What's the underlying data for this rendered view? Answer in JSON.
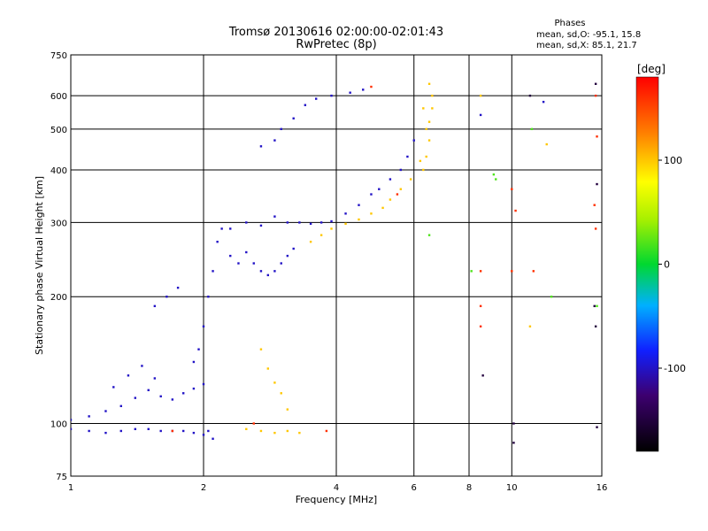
{
  "chart_data": {
    "type": "scatter",
    "title": "Tromsø 20130616 02:00:00-02:01:43",
    "subtitle": "RwPretec (8p)",
    "xlabel": "Frequency [MHz]",
    "ylabel": "Stationary phase Virtual Height [km]",
    "x_scale": "log",
    "y_scale": "log",
    "xlim": [
      1,
      16
    ],
    "ylim": [
      75,
      750
    ],
    "x_ticks": [
      1,
      2,
      4,
      6,
      8,
      10,
      16
    ],
    "y_ticks": [
      75,
      100,
      200,
      300,
      400,
      500,
      600,
      750
    ],
    "grid": true,
    "phase_box": {
      "title": "Phases",
      "line1": "mean, sd,O: -95.1, 15.8",
      "line2": "mean, sd,X:  85.1, 21.7"
    },
    "colorbar": {
      "label": "[deg]",
      "ticks": [
        100,
        0,
        -100
      ],
      "range": [
        -180,
        180
      ]
    },
    "series": [
      {
        "color_phase": -100,
        "points": [
          [
            1.0,
            97
          ],
          [
            1.1,
            96
          ],
          [
            1.2,
            95
          ],
          [
            1.3,
            96
          ],
          [
            1.4,
            97
          ],
          [
            1.5,
            97
          ],
          [
            1.6,
            96
          ],
          [
            1.7,
            96
          ],
          [
            1.8,
            96
          ],
          [
            1.9,
            95
          ],
          [
            2.0,
            94
          ],
          [
            1.0,
            102
          ],
          [
            1.1,
            104
          ],
          [
            1.2,
            107
          ],
          [
            1.3,
            110
          ],
          [
            1.4,
            115
          ],
          [
            1.5,
            120
          ],
          [
            1.6,
            116
          ],
          [
            1.7,
            114
          ],
          [
            1.8,
            118
          ],
          [
            1.9,
            121
          ],
          [
            2.0,
            124
          ],
          [
            1.25,
            122
          ],
          [
            1.35,
            130
          ],
          [
            1.45,
            137
          ],
          [
            1.55,
            128
          ],
          [
            1.9,
            140
          ],
          [
            1.95,
            150
          ],
          [
            2.0,
            170
          ],
          [
            2.05,
            200
          ],
          [
            2.1,
            230
          ],
          [
            2.15,
            270
          ],
          [
            2.2,
            290
          ],
          [
            2.3,
            250
          ],
          [
            2.4,
            240
          ],
          [
            2.5,
            255
          ],
          [
            2.6,
            240
          ],
          [
            2.7,
            230
          ],
          [
            2.8,
            225
          ],
          [
            2.9,
            230
          ],
          [
            3.0,
            240
          ],
          [
            3.1,
            250
          ],
          [
            3.2,
            260
          ],
          [
            2.3,
            290
          ],
          [
            2.5,
            300
          ],
          [
            2.7,
            295
          ],
          [
            2.9,
            310
          ],
          [
            3.1,
            300
          ],
          [
            3.3,
            300
          ],
          [
            3.5,
            298
          ],
          [
            3.7,
            300
          ],
          [
            3.9,
            302
          ],
          [
            4.2,
            315
          ],
          [
            4.5,
            330
          ],
          [
            4.8,
            350
          ],
          [
            5.0,
            360
          ],
          [
            5.3,
            380
          ],
          [
            5.6,
            400
          ],
          [
            5.8,
            430
          ],
          [
            6.0,
            470
          ],
          [
            2.7,
            455
          ],
          [
            2.9,
            470
          ],
          [
            3.0,
            500
          ],
          [
            3.2,
            530
          ],
          [
            3.4,
            570
          ],
          [
            3.6,
            590
          ],
          [
            3.9,
            600
          ],
          [
            4.3,
            610
          ],
          [
            4.6,
            620
          ],
          [
            1.55,
            190
          ],
          [
            1.65,
            200
          ],
          [
            1.75,
            210
          ],
          [
            2.1,
            92
          ],
          [
            2.05,
            96
          ],
          [
            11.8,
            580
          ],
          [
            8.5,
            540
          ]
        ]
      },
      {
        "color_phase": 100,
        "points": [
          [
            2.5,
            97
          ],
          [
            2.7,
            96
          ],
          [
            2.9,
            95
          ],
          [
            3.1,
            96
          ],
          [
            3.3,
            95
          ],
          [
            2.7,
            150
          ],
          [
            2.8,
            135
          ],
          [
            2.9,
            125
          ],
          [
            3.0,
            118
          ],
          [
            3.1,
            108
          ],
          [
            3.5,
            270
          ],
          [
            3.7,
            280
          ],
          [
            3.9,
            290
          ],
          [
            4.2,
            298
          ],
          [
            4.5,
            305
          ],
          [
            4.8,
            315
          ],
          [
            5.1,
            325
          ],
          [
            5.3,
            340
          ],
          [
            5.6,
            360
          ],
          [
            5.9,
            380
          ],
          [
            6.3,
            400
          ],
          [
            6.4,
            430
          ],
          [
            6.5,
            470
          ],
          [
            6.5,
            520
          ],
          [
            6.6,
            560
          ],
          [
            6.6,
            600
          ],
          [
            6.5,
            640
          ],
          [
            6.3,
            560
          ],
          [
            6.4,
            500
          ],
          [
            6.2,
            420
          ],
          [
            8.5,
            600
          ],
          [
            11.0,
            170
          ],
          [
            12.0,
            460
          ]
        ]
      },
      {
        "color_phase": 160,
        "points": [
          [
            1.7,
            96
          ],
          [
            2.6,
            100
          ],
          [
            3.8,
            96
          ],
          [
            4.8,
            630
          ],
          [
            10.0,
            360
          ],
          [
            10.2,
            320
          ],
          [
            10.0,
            230
          ],
          [
            11.2,
            230
          ],
          [
            15.5,
            600
          ],
          [
            15.6,
            480
          ],
          [
            15.4,
            330
          ],
          [
            15.5,
            290
          ],
          [
            8.5,
            230
          ],
          [
            8.5,
            190
          ],
          [
            8.5,
            170
          ],
          [
            5.5,
            350
          ]
        ]
      },
      {
        "color_phase": -150,
        "points": [
          [
            10.1,
            100
          ],
          [
            10.1,
            90
          ],
          [
            11.0,
            600
          ],
          [
            15.6,
            98
          ],
          [
            15.4,
            190
          ],
          [
            15.5,
            170
          ],
          [
            15.6,
            370
          ],
          [
            8.6,
            130
          ],
          [
            15.5,
            640
          ]
        ]
      },
      {
        "color_phase": 20,
        "points": [
          [
            9.1,
            390
          ],
          [
            9.2,
            380
          ],
          [
            8.1,
            230
          ],
          [
            12.3,
            200
          ],
          [
            6.5,
            280
          ],
          [
            15.6,
            190
          ],
          [
            11.1,
            500
          ]
        ]
      }
    ]
  }
}
